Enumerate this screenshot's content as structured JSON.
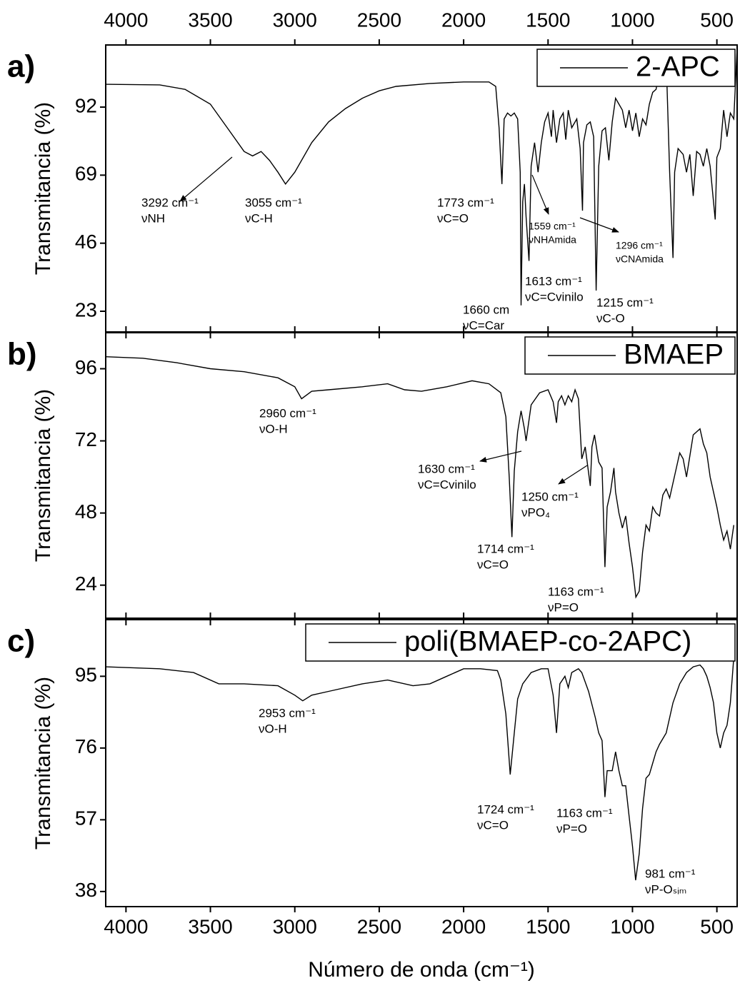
{
  "chart_data": [
    {
      "type": "line",
      "panel_label": "a)",
      "y_label": "Transmitancia (%)",
      "legend": "upper right",
      "xlim": [
        4120,
        380
      ],
      "xticks": [
        4000,
        3500,
        3000,
        2500,
        2000,
        1500,
        1000,
        500
      ],
      "ylim": [
        16,
        113
      ],
      "yticks": [
        92,
        69,
        46,
        23
      ],
      "x": [
        4120,
        3800,
        3650,
        3500,
        3400,
        3300,
        3250,
        3200,
        3150,
        3100,
        3055,
        3000,
        2900,
        2800,
        2700,
        2600,
        2500,
        2400,
        2200,
        2000,
        1850,
        1810,
        1790,
        1773,
        1760,
        1740,
        1720,
        1700,
        1680,
        1665,
        1660,
        1650,
        1640,
        1630,
        1613,
        1600,
        1580,
        1559,
        1540,
        1520,
        1500,
        1480,
        1470,
        1450,
        1430,
        1410,
        1395,
        1380,
        1360,
        1330,
        1310,
        1296,
        1290,
        1270,
        1250,
        1230,
        1215,
        1200,
        1180,
        1160,
        1140,
        1120,
        1100,
        1080,
        1060,
        1040,
        1020,
        1000,
        980,
        960,
        940,
        920,
        900,
        880,
        860,
        840,
        820,
        800,
        780,
        760,
        750,
        730,
        700,
        680,
        660,
        640,
        620,
        600,
        580,
        560,
        540,
        520,
        510,
        500,
        480,
        460,
        440,
        420,
        400,
        380
      ],
      "series": [
        {
          "name": "2-APC",
          "color": "#000000",
          "values": [
            99.7,
            99.5,
            98,
            93,
            85,
            77,
            75.5,
            77,
            74,
            70,
            66,
            70,
            80,
            87,
            91.5,
            95,
            97.5,
            99,
            100,
            100.5,
            100.5,
            99,
            85,
            66,
            88,
            90,
            89,
            90,
            88,
            70,
            25,
            60,
            66,
            55,
            40,
            72,
            80,
            70,
            80,
            87,
            90,
            82,
            91,
            80,
            88,
            90,
            81,
            91,
            85,
            88,
            78,
            57,
            80,
            86,
            87,
            82,
            30,
            72,
            84,
            85,
            74,
            87,
            95,
            93,
            91,
            85,
            91,
            84,
            90,
            82,
            88,
            86,
            93,
            97,
            98,
            105,
            103,
            108,
            70,
            41,
            70,
            78,
            76,
            70,
            76,
            62,
            77,
            76,
            72,
            78,
            72,
            60,
            54,
            75,
            78,
            91,
            82,
            90,
            88,
            112
          ]
        }
      ],
      "annotations": [
        [
          "3292 cm⁻¹",
          "νNH"
        ],
        [
          "3055 cm⁻¹",
          "νC-H"
        ],
        [
          "1773 cm⁻¹",
          "νC=O"
        ],
        [
          "1559 cm⁻¹",
          "νNHAmida"
        ],
        [
          "1296 cm⁻¹",
          "νCNAmida"
        ],
        [
          "1613 cm⁻¹",
          "νC=Cvinilo"
        ],
        [
          "1660 cm",
          "νC=Car"
        ],
        [
          "1215 cm⁻¹",
          "νC-O"
        ]
      ]
    },
    {
      "type": "line",
      "panel_label": "b)",
      "y_label": "Transmitancia (%)",
      "legend": "upper right",
      "xlim": [
        4120,
        380
      ],
      "xticks": [
        4000,
        3500,
        3000,
        2500,
        2000,
        1500,
        1000,
        500
      ],
      "ylim": [
        13,
        108
      ],
      "yticks": [
        96,
        72,
        48,
        24
      ],
      "x": [
        4120,
        3900,
        3700,
        3500,
        3300,
        3100,
        3000,
        2960,
        2900,
        2800,
        2600,
        2450,
        2350,
        2250,
        2100,
        1950,
        1850,
        1780,
        1750,
        1730,
        1714,
        1700,
        1680,
        1660,
        1640,
        1630,
        1600,
        1550,
        1500,
        1470,
        1450,
        1440,
        1420,
        1400,
        1380,
        1360,
        1340,
        1320,
        1300,
        1280,
        1250,
        1240,
        1225,
        1200,
        1180,
        1163,
        1150,
        1130,
        1110,
        1100,
        1080,
        1060,
        1040,
        1020,
        1000,
        980,
        960,
        940,
        920,
        900,
        880,
        860,
        840,
        820,
        800,
        780,
        760,
        740,
        720,
        700,
        680,
        660,
        640,
        620,
        600,
        580,
        560,
        540,
        520,
        500,
        480,
        460,
        440,
        420,
        400
      ],
      "series": [
        {
          "name": "BMAEP",
          "color": "#000000",
          "values": [
            100,
            99.5,
            98,
            96,
            95,
            93,
            90,
            86,
            88.5,
            89,
            90,
            91,
            89,
            88.5,
            90,
            92,
            91,
            88,
            80,
            60,
            40,
            62,
            75,
            82,
            76,
            72,
            84,
            88,
            89,
            85,
            78,
            85,
            87,
            84,
            87,
            85,
            89,
            86,
            66,
            70,
            57,
            70,
            74,
            65,
            63,
            30,
            50,
            55,
            63,
            55,
            48,
            43,
            47,
            38,
            30,
            20,
            22,
            35,
            44,
            42,
            50,
            48,
            47,
            54,
            56,
            53,
            58,
            63,
            68,
            66,
            60,
            67,
            74,
            75,
            76,
            71,
            68,
            60,
            55,
            50,
            44,
            39,
            42,
            36,
            44
          ]
        }
      ],
      "annotations": [
        [
          "2960 cm⁻¹",
          "νO-H"
        ],
        [
          "1630 cm⁻¹",
          "νC=Cvinilo"
        ],
        [
          "1250 cm⁻¹",
          "νPO₄"
        ],
        [
          "1714 cm⁻¹",
          "νC=O"
        ],
        [
          "1163 cm⁻¹",
          "νP=O"
        ]
      ]
    },
    {
      "type": "line",
      "panel_label": "c)",
      "y_label": "Transmitancia (%)",
      "x_label": "Número de onda (cm⁻¹)",
      "legend": "upper right",
      "xlim": [
        4120,
        380
      ],
      "xticks": [
        4000,
        3500,
        3000,
        2500,
        2000,
        1500,
        1000,
        500
      ],
      "ylim": [
        34,
        110
      ],
      "yticks": [
        95,
        76,
        57,
        38
      ],
      "x": [
        4120,
        3800,
        3600,
        3450,
        3300,
        3100,
        3000,
        2953,
        2900,
        2800,
        2600,
        2450,
        2300,
        2200,
        2100,
        2000,
        1900,
        1800,
        1780,
        1750,
        1724,
        1700,
        1680,
        1650,
        1600,
        1540,
        1500,
        1470,
        1450,
        1430,
        1400,
        1380,
        1360,
        1320,
        1300,
        1260,
        1220,
        1200,
        1180,
        1163,
        1150,
        1120,
        1100,
        1080,
        1060,
        1040,
        1020,
        1000,
        981,
        960,
        940,
        920,
        900,
        880,
        860,
        840,
        800,
        760,
        720,
        680,
        640,
        600,
        580,
        560,
        540,
        520,
        500,
        480,
        460,
        440,
        420,
        400
      ],
      "series": [
        {
          "name": "poli(BMAEP-co-2APC)",
          "color": "#000000",
          "values": [
            97.5,
            97,
            96,
            93,
            93,
            92.5,
            90,
            88.5,
            90,
            91,
            93,
            94,
            92.5,
            93,
            95,
            97,
            97,
            96.5,
            94,
            85,
            69,
            80,
            89,
            93,
            96,
            97,
            97,
            90,
            80,
            93,
            95,
            92,
            96,
            97,
            96,
            91,
            84,
            80,
            78,
            63,
            70,
            70,
            75,
            70,
            66,
            66,
            58,
            50,
            41,
            48,
            60,
            68,
            69,
            72,
            75,
            77,
            80,
            88,
            93,
            96,
            97.5,
            98,
            97,
            95,
            92,
            88,
            80,
            76,
            80,
            82,
            88,
            100
          ]
        }
      ],
      "annotations": [
        [
          "2953 cm⁻¹",
          "νO-H"
        ],
        [
          "1724 cm⁻¹",
          "νC=O"
        ],
        [
          "1163 cm⁻¹",
          "νP=O"
        ],
        [
          "981 cm⁻¹",
          "νP-Oₛᵢₘ"
        ]
      ]
    }
  ]
}
